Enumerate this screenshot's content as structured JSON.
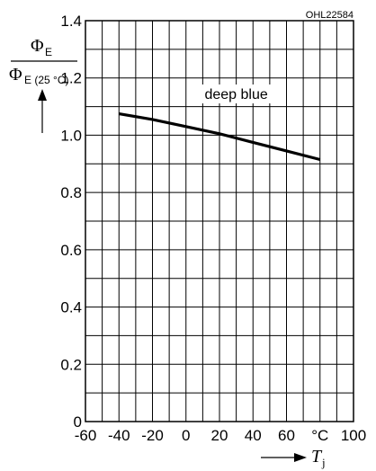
{
  "chart_data": {
    "type": "line",
    "code": "OHL22584",
    "ylabel": {
      "numerator_symbol": "Φ",
      "numerator_sub": "E",
      "denominator_symbol": "Φ",
      "denominator_sub": "E (25 °C)"
    },
    "xlabel": {
      "symbol": "T",
      "sub": "j"
    },
    "x_unit": "°C",
    "xlim": [
      -60,
      100
    ],
    "ylim": [
      0,
      1.4
    ],
    "x_ticks": [
      "-60",
      "-40",
      "-20",
      "0",
      "20",
      "40",
      "60",
      "80",
      "100"
    ],
    "y_ticks": [
      "0",
      "0.2",
      "0.4",
      "0.6",
      "0.8",
      "1.0",
      "1.2",
      "1.4"
    ],
    "grid": true,
    "series": [
      {
        "name": "deep blue",
        "x": [
          -40,
          -20,
          0,
          20,
          40,
          60,
          80
        ],
        "y": [
          1.075,
          1.055,
          1.03,
          1.005,
          0.975,
          0.945,
          0.915
        ]
      }
    ]
  }
}
